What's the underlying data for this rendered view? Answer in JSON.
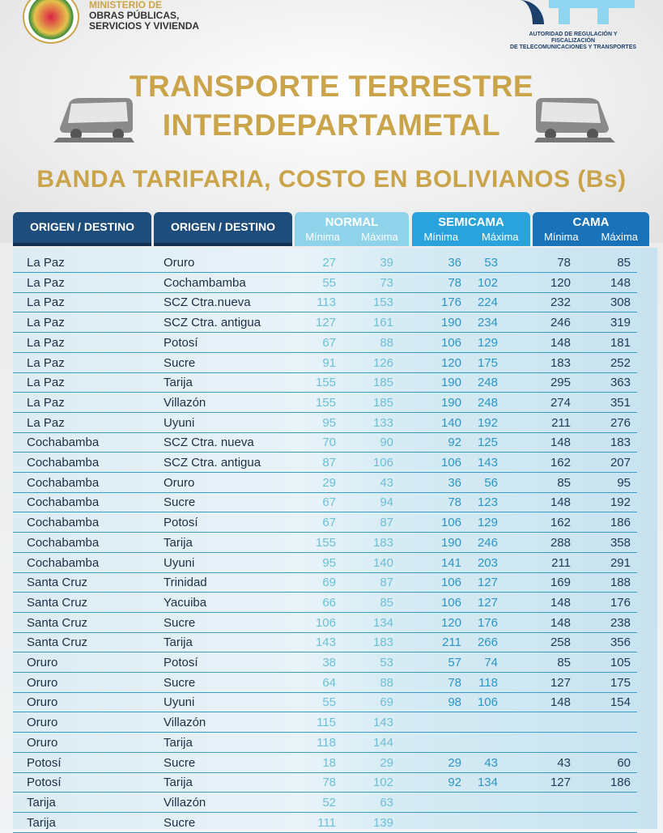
{
  "header": {
    "ministry": [
      "MINISTERIO DE",
      "OBRAS PÚBLICAS,",
      "SERVICIOS Y VIVIENDA"
    ],
    "att_text": [
      "AUTORIDAD DE REGULACIÓN Y FISCALIZACIÓN",
      "DE TELECOMUNICACIONES Y TRANSPORTES"
    ]
  },
  "title": {
    "line1": "TRANSPORTE TERRESTRE",
    "line2": "INTERDEPARTAMETAL",
    "subtitle": "BANDA TARIFARIA, COSTO EN BOLIVIANOS (Bs)"
  },
  "table": {
    "col_origen": "ORIGEN / DESTINO",
    "col_destino": "ORIGEN / DESTINO",
    "groups": [
      {
        "name": "NORMAL",
        "min": "Mínima",
        "max": "Máxima",
        "color": "#8fd3ea",
        "text": "#6cbfd6"
      },
      {
        "name": "SEMICAMA",
        "min": "Mínima",
        "max": "Máxima",
        "color": "#2aa3dc",
        "text": "#2d95c4"
      },
      {
        "name": "CAMA",
        "min": "Mínima",
        "max": "Máxima",
        "color": "#1a72b8",
        "text": "#1f3a58"
      }
    ],
    "rows": [
      [
        "La Paz",
        "Oruro",
        "27",
        "39",
        "36",
        "53",
        "78",
        "85"
      ],
      [
        "La Paz",
        "Cochambamba",
        "55",
        "73",
        "78",
        "102",
        "120",
        "148"
      ],
      [
        "La Paz",
        "SCZ Ctra.nueva",
        "113",
        "153",
        "176",
        "224",
        "232",
        "308"
      ],
      [
        "La Paz",
        "SCZ Ctra. antigua",
        "127",
        "161",
        "190",
        "234",
        "246",
        "319"
      ],
      [
        "La Paz",
        "Potosí",
        "67",
        "88",
        "106",
        "129",
        "148",
        "181"
      ],
      [
        "La Paz",
        "Sucre",
        "91",
        "126",
        "120",
        "175",
        "183",
        "252"
      ],
      [
        "La Paz",
        "Tarija",
        "155",
        "185",
        "190",
        "248",
        "295",
        "363"
      ],
      [
        "La Paz",
        "Villazón",
        "155",
        "185",
        "190",
        "248",
        "274",
        "351"
      ],
      [
        "La Paz",
        "Uyuni",
        "95",
        "133",
        "140",
        "192",
        "211",
        "276"
      ],
      [
        "Cochabamba",
        "SCZ Ctra. nueva",
        "70",
        "90",
        "92",
        "125",
        "148",
        "183"
      ],
      [
        "Cochabamba",
        "SCZ Ctra. antigua",
        "87",
        "106",
        "106",
        "143",
        "162",
        "207"
      ],
      [
        "Cochabamba",
        "Oruro",
        "29",
        "43",
        "36",
        "56",
        "85",
        "95"
      ],
      [
        "Cochabamba",
        "Sucre",
        "67",
        "94",
        "78",
        "123",
        "148",
        "192"
      ],
      [
        "Cochabamba",
        "Potosí",
        "67",
        "87",
        "106",
        "129",
        "162",
        "186"
      ],
      [
        "Cochabamba",
        "Tarija",
        "155",
        "183",
        "190",
        "246",
        "288",
        "358"
      ],
      [
        "Cochabamba",
        "Uyuni",
        "95",
        "140",
        "141",
        "203",
        "211",
        "291"
      ],
      [
        "Santa Cruz",
        "Trinidad",
        "69",
        "87",
        "106",
        "127",
        "169",
        "188"
      ],
      [
        "Santa Cruz",
        "Yacuiba",
        "66",
        "85",
        "106",
        "127",
        "148",
        "176"
      ],
      [
        "Santa Cruz",
        "Sucre",
        "106",
        "134",
        "120",
        "176",
        "148",
        "238"
      ],
      [
        "Santa Cruz",
        "Tarija",
        "143",
        "183",
        "211",
        "266",
        "258",
        "356"
      ],
      [
        "Oruro",
        "Potosí",
        "38",
        "53",
        "57",
        "74",
        "85",
        "105"
      ],
      [
        "Oruro",
        "Sucre",
        "64",
        "88",
        "78",
        "118",
        "127",
        "175"
      ],
      [
        "Oruro",
        "Uyuni",
        "55",
        "69",
        "98",
        "106",
        "148",
        "154"
      ],
      [
        "Oruro",
        "Villazón",
        "115",
        "143",
        "",
        "",
        "",
        ""
      ],
      [
        "Oruro",
        "Tarija",
        "118",
        "144",
        "",
        "",
        "",
        ""
      ],
      [
        "Potosí",
        "Sucre",
        "18",
        "29",
        "29",
        "43",
        "43",
        "60"
      ],
      [
        "Potosí",
        "Tarija",
        "78",
        "102",
        "92",
        "134",
        "127",
        "186"
      ],
      [
        "Tarija",
        "Villazón",
        "52",
        "63",
        "",
        "",
        "",
        ""
      ],
      [
        "Tarija",
        "Sucre",
        "111",
        "139",
        "",
        "",
        "",
        ""
      ]
    ]
  }
}
